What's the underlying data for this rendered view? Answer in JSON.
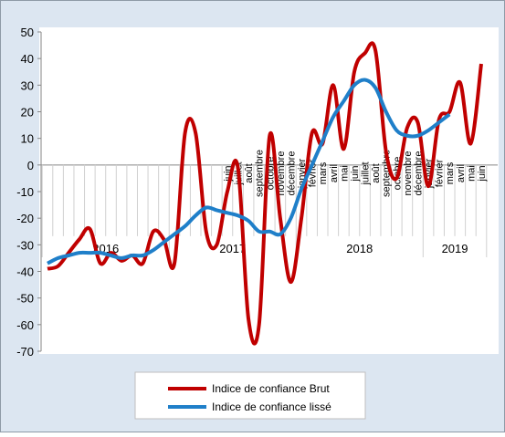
{
  "chart_data": {
    "type": "line",
    "categories": [
      null,
      null,
      null,
      null,
      null,
      null,
      null,
      null,
      null,
      null,
      null,
      null,
      null,
      null,
      null,
      null,
      null,
      "juin",
      "juillet",
      "août",
      "septembre",
      "octobre",
      "novembre",
      "décembre",
      "janvier",
      "février",
      "mars",
      "avril",
      "mai",
      "juin",
      "juillet",
      "août",
      "septembre",
      "octobre",
      "novembre",
      "décembre",
      "janvier",
      "février",
      "mars",
      "avril",
      "mai",
      "juin"
    ],
    "years": [
      "2016",
      "2017",
      "2018",
      "2019"
    ],
    "series": [
      {
        "name": "Indice de confiance Brut",
        "color": "#c00000",
        "values": [
          -39,
          -38,
          -33,
          -28,
          -24,
          -37,
          -33,
          -36,
          -34,
          -37,
          -25,
          -28,
          -37,
          12,
          12,
          -25,
          -30,
          -10,
          -1,
          -58,
          -60,
          11,
          -20,
          -44,
          -20,
          12,
          8,
          30,
          6,
          35,
          42,
          43,
          5,
          -5,
          14,
          16,
          -8,
          17,
          20,
          31,
          8,
          38
        ]
      },
      {
        "name": "Indice de confiance lissé",
        "color": "#1f7fc9",
        "values": [
          -37,
          -35,
          -34,
          -33,
          -33,
          -33,
          -34,
          -35,
          -34,
          -34,
          -32,
          -29,
          -26,
          -23,
          -19,
          -16,
          -17,
          -18,
          -19,
          -21,
          -25,
          -25,
          -26,
          -20,
          -9,
          0,
          9,
          18,
          24,
          30,
          32,
          29,
          20,
          13,
          11,
          11,
          13,
          16,
          19,
          null,
          null,
          null
        ]
      }
    ],
    "ylim": [
      -70,
      50
    ],
    "yticks": [
      -70,
      -60,
      -50,
      -40,
      -30,
      -20,
      -10,
      0,
      10,
      20,
      30,
      40,
      50
    ]
  }
}
